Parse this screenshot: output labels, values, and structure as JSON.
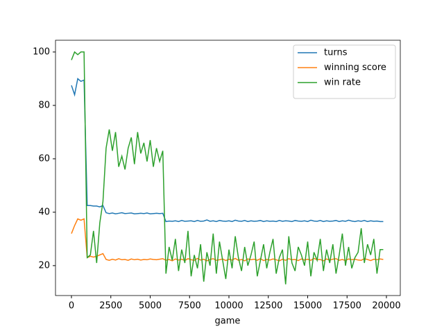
{
  "chart_data": {
    "type": "line",
    "x_label": "game",
    "x": [
      0,
      200,
      400,
      600,
      800,
      1000,
      1200,
      1400,
      1600,
      1800,
      2000,
      2200,
      2400,
      2600,
      2800,
      3000,
      3200,
      3400,
      3600,
      3800,
      4000,
      4200,
      4400,
      4600,
      4800,
      5000,
      5200,
      5400,
      5600,
      5800,
      6000,
      6200,
      6400,
      6600,
      6800,
      7000,
      7200,
      7400,
      7600,
      7800,
      8000,
      8200,
      8400,
      8600,
      8800,
      9000,
      9200,
      9400,
      9600,
      9800,
      10000,
      10200,
      10400,
      10600,
      10800,
      11000,
      11200,
      11400,
      11600,
      11800,
      12000,
      12200,
      12400,
      12600,
      12800,
      13000,
      13200,
      13400,
      13600,
      13800,
      14000,
      14200,
      14400,
      14600,
      14800,
      15000,
      15200,
      15400,
      15600,
      15800,
      16000,
      16200,
      16400,
      16600,
      16800,
      17000,
      17200,
      17400,
      17600,
      17800,
      18000,
      18200,
      18400,
      18600,
      18800,
      19000,
      19200,
      19400,
      19600,
      19800
    ],
    "series": [
      {
        "name": "turns",
        "color": "#1f77b4",
        "values": [
          87.5,
          84,
          90,
          89,
          89.5,
          42.5,
          42.5,
          42.3,
          42.3,
          42,
          42.5,
          39.8,
          39.5,
          39.7,
          39.4,
          39.6,
          39.8,
          39.5,
          39.6,
          39.7,
          39.4,
          39.5,
          39.6,
          39.5,
          39.7,
          39.4,
          39.5,
          39.6,
          39.5,
          39.6,
          36.5,
          36.7,
          36.6,
          36.8,
          36.5,
          36.9,
          36.6,
          36.7,
          36.8,
          36.5,
          36.9,
          36.6,
          36.7,
          37.1,
          36.6,
          36.8,
          36.5,
          36.9,
          36.7,
          36.6,
          36.8,
          36.5,
          37,
          36.7,
          36.6,
          36.9,
          36.5,
          36.8,
          36.6,
          36.7,
          36.9,
          36.5,
          36.8,
          36.6,
          36.7,
          36.5,
          36.9,
          36.6,
          36.8,
          36.7,
          36.5,
          36.9,
          36.7,
          36.6,
          36.8,
          36.5,
          37,
          36.7,
          36.6,
          36.9,
          36.5,
          36.8,
          36.6,
          36.7,
          36.9,
          36.5,
          36.8,
          36.6,
          37,
          36.7,
          36.5,
          36.8,
          36.6,
          36.9,
          36.5,
          36.8,
          36.6,
          36.7,
          36.5,
          36.5
        ]
      },
      {
        "name": "winning score",
        "color": "#ff7f0e",
        "values": [
          32,
          35,
          37.5,
          37,
          37.5,
          23,
          23.5,
          23.2,
          23.5,
          24,
          24.5,
          22.3,
          22,
          22.4,
          22.1,
          22.6,
          22.2,
          22.3,
          22,
          22.5,
          22.2,
          22.4,
          22.1,
          22.3,
          22.2,
          22.5,
          22.3,
          22.2,
          22.4,
          22.6,
          22,
          22.3,
          21.8,
          22.5,
          22.1,
          22.4,
          21.9,
          22.6,
          22.2,
          22,
          22.7,
          22.1,
          22.4,
          21.8,
          22.3,
          22.6,
          22,
          22.2,
          22.5,
          21.9,
          22.4,
          22.1,
          22.7,
          22,
          22.3,
          21.8,
          22.5,
          22.2,
          22.4,
          22,
          22.6,
          21.9,
          22.3,
          22.1,
          22.5,
          22.2,
          21.8,
          22.4,
          22,
          22.6,
          22.2,
          22.3,
          21.9,
          22.5,
          22.1,
          22.4,
          22,
          22.7,
          22.2,
          22.3,
          21.8,
          22.5,
          22.1,
          22.4,
          22.6,
          22,
          22.3,
          21.9,
          22.5,
          22.2,
          22.4,
          22.1,
          22,
          22.6,
          22.3,
          21.9,
          22.4,
          22.2,
          22.5,
          22.3
        ]
      },
      {
        "name": "win rate",
        "color": "#2ca02c",
        "values": [
          97,
          100,
          99,
          100,
          100,
          23,
          24,
          33,
          21,
          36,
          44,
          64,
          71,
          63,
          70,
          57,
          61,
          56,
          64,
          68,
          58,
          70,
          62,
          66,
          59,
          67,
          57,
          64,
          59,
          63,
          17,
          27,
          22,
          30,
          18,
          26,
          21,
          33,
          16,
          24,
          19,
          28,
          14,
          25,
          20,
          32,
          17,
          29,
          22,
          15,
          26,
          19,
          31,
          23,
          18,
          27,
          20,
          24,
          29,
          16,
          22,
          28,
          19,
          25,
          30,
          17,
          23,
          26,
          13,
          31,
          21,
          18,
          27,
          24,
          20,
          29,
          16,
          25,
          22,
          30,
          18,
          26,
          21,
          28,
          17,
          24,
          32,
          20,
          27,
          19,
          23,
          25,
          34,
          21,
          28,
          24,
          30,
          17,
          26,
          26
        ]
      }
    ],
    "xlim": [
      -1013,
      20881
    ],
    "ylim": [
      8.8,
      104.4
    ],
    "xticks": [
      0,
      2500,
      5000,
      7500,
      10000,
      12500,
      15000,
      17500,
      20000
    ],
    "yticks": [
      20,
      40,
      60,
      80,
      100
    ],
    "legend": "upper right"
  }
}
